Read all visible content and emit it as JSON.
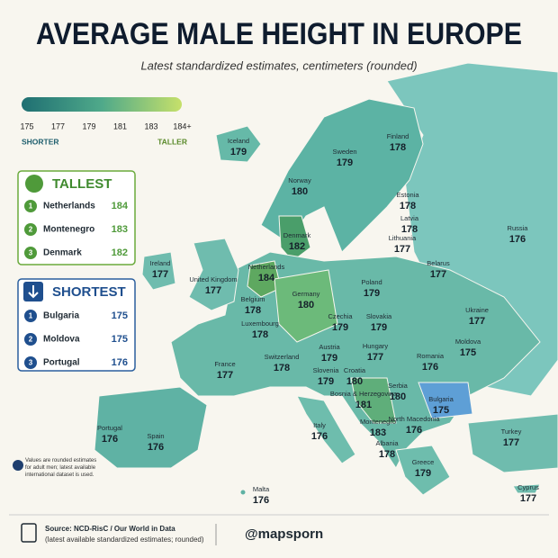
{
  "header": {
    "title": "AVERAGE MALE HEIGHT IN EUROPE",
    "subtitle": "Latest standardized estimates, centimeters (rounded)"
  },
  "legend": {
    "ticks": [
      175,
      177,
      179,
      181,
      183,
      "184+"
    ],
    "low": "SHORTER",
    "high": "TALLER"
  },
  "tallest": {
    "title": "TALLEST",
    "items": [
      {
        "rank": 1,
        "name": "Netherlands",
        "value": 184
      },
      {
        "rank": 2,
        "name": "Montenegro",
        "value": 183
      },
      {
        "rank": 3,
        "name": "Denmark",
        "value": 182
      }
    ]
  },
  "shortest": {
    "title": "SHORTEST",
    "items": [
      {
        "rank": 1,
        "name": "Bulgaria",
        "value": 175
      },
      {
        "rank": 2,
        "name": "Moldova",
        "value": 175
      },
      {
        "rank": 3,
        "name": "Portugal",
        "value": 176
      }
    ]
  },
  "countries": [
    {
      "name": "Iceland",
      "value": 179
    },
    {
      "name": "Finland",
      "value": 178
    },
    {
      "name": "Sweden",
      "value": 179
    },
    {
      "name": "Norway",
      "value": 180
    },
    {
      "name": "Estonia",
      "value": 178
    },
    {
      "name": "Latvia",
      "value": 178
    },
    {
      "name": "Lithuania",
      "value": 177
    },
    {
      "name": "Russia",
      "value": 176
    },
    {
      "name": "Denmark",
      "value": 182
    },
    {
      "name": "Ireland",
      "value": 177
    },
    {
      "name": "United Kingdom",
      "value": 177
    },
    {
      "name": "Netherlands",
      "value": 184
    },
    {
      "name": "Belarus",
      "value": 177
    },
    {
      "name": "Poland",
      "value": 179
    },
    {
      "name": "Germany",
      "value": 180
    },
    {
      "name": "Belgium",
      "value": 178
    },
    {
      "name": "Luxembourg",
      "value": 178
    },
    {
      "name": "Czechia",
      "value": 179
    },
    {
      "name": "Slovakia",
      "value": 179
    },
    {
      "name": "Ukraine",
      "value": 177
    },
    {
      "name": "Moldova",
      "value": 175
    },
    {
      "name": "Austria",
      "value": 179
    },
    {
      "name": "Hungary",
      "value": 177
    },
    {
      "name": "Romania",
      "value": 176
    },
    {
      "name": "Switzerland",
      "value": 178
    },
    {
      "name": "France",
      "value": 177
    },
    {
      "name": "Slovenia",
      "value": 179
    },
    {
      "name": "Croatia",
      "value": 180
    },
    {
      "name": "Serbia",
      "value": 180
    },
    {
      "name": "Bosnia & Herzegovina",
      "value": 181
    },
    {
      "name": "Bulgaria",
      "value": 175
    },
    {
      "name": "Portugal",
      "value": 176
    },
    {
      "name": "Spain",
      "value": 176
    },
    {
      "name": "Italy",
      "value": 176
    },
    {
      "name": "Montenegro",
      "value": 183
    },
    {
      "name": "North Macedonia",
      "value": 176
    },
    {
      "name": "Albania",
      "value": 178
    },
    {
      "name": "Greece",
      "value": 179
    },
    {
      "name": "Turkey",
      "value": 177
    },
    {
      "name": "Malta",
      "value": 176
    },
    {
      "name": "Cyprus",
      "value": 177
    }
  ],
  "note": "Values are rounded estimates for adult men; latest available international dataset is used.",
  "footer": {
    "source": "Source: NCD-RisC / Our World in Data",
    "source_detail": "(latest available standardized estimates; rounded)",
    "handle": "@mapsporn"
  }
}
